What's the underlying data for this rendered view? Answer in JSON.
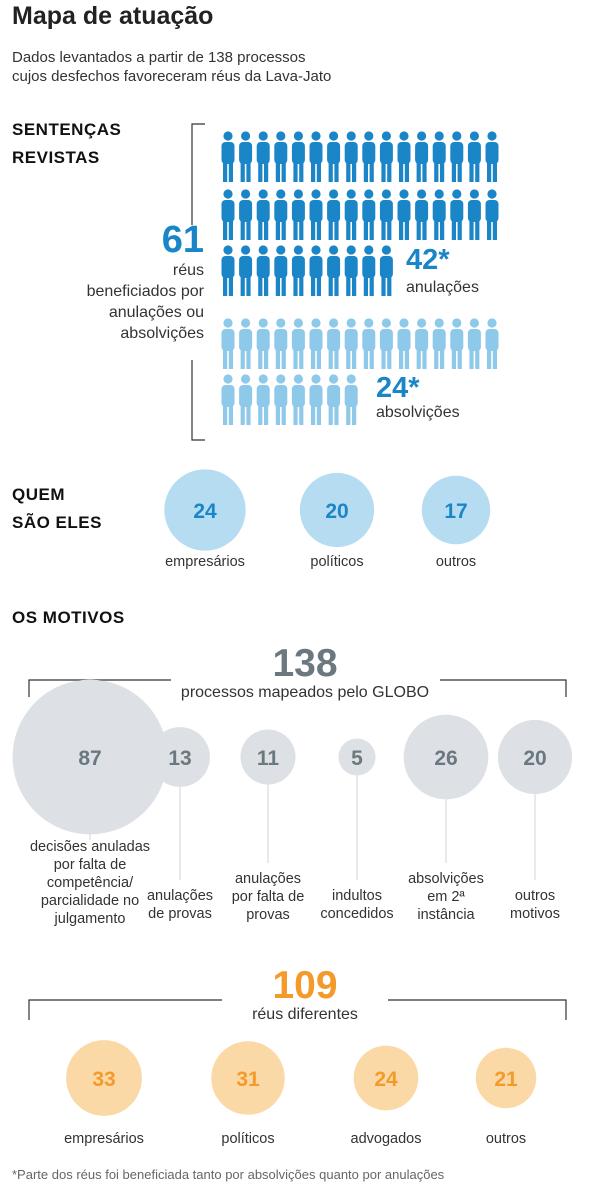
{
  "header": {
    "title": "Mapa de atuação",
    "subtitle_line1": "Dados levantados a partir de 138 processos",
    "subtitle_line2": "cujos desfechos favoreceram réus da Lava-Jato"
  },
  "sentencas": {
    "heading_line1": "SENTENÇAS",
    "heading_line2": "REVISTAS",
    "total": "61",
    "total_text_line1": "réus",
    "total_text_line2": "beneficiados por",
    "total_text_line3": "anulações ou",
    "total_text_line4": "absolvições",
    "anulacoes_value": "42*",
    "anulacoes_label": "anulações",
    "absolvicoes_value": "24*",
    "absolvicoes_label": "absolvições"
  },
  "quem": {
    "heading_line1": "QUEM",
    "heading_line2": "SÃO ELES"
  },
  "motivos": {
    "heading": "OS MOTIVOS",
    "total": "138",
    "total_label": "processos mapeados pelo GLOBO"
  },
  "reus": {
    "total": "109",
    "total_label": "réus diferentes"
  },
  "footnote": "*Parte dos réus foi beneficiada tanto por absolvições quanto por anulações",
  "colors": {
    "dark_blue": "#1a86c7",
    "light_blue": "#8ec9ea",
    "pale_blue": "#b5dcf1",
    "gray_circle": "#dde1e5",
    "orange_text": "#f39a2a",
    "orange_circle": "#fbd9a6",
    "gray_text": "#6b7880"
  },
  "chart_data": [
    {
      "type": "pictogram",
      "title": "SENTENÇAS REVISTAS",
      "total": 61,
      "series": [
        {
          "name": "anulações",
          "values": [
            42
          ]
        },
        {
          "name": "absolvições",
          "values": [
            24
          ]
        }
      ]
    },
    {
      "type": "bubble",
      "title": "QUEM SÃO ELES",
      "categories": [
        "empresários",
        "políticos",
        "outros"
      ],
      "values": [
        24,
        20,
        17
      ]
    },
    {
      "type": "bubble",
      "title": "OS MOTIVOS",
      "total": 138,
      "total_label": "processos mapeados pelo GLOBO",
      "categories": [
        "decisões anuladas por falta de competência/ parcialidade no julgamento",
        "anulações de provas",
        "anulações por falta de provas",
        "indultos concedidos",
        "absolvições em 2ª instância",
        "outros motivos"
      ],
      "labels": [
        [
          "decisões anuladas",
          "por falta de",
          "competência/",
          "parcialidade no",
          "julgamento"
        ],
        [
          "anulações",
          "de provas"
        ],
        [
          "anulações",
          "por falta de",
          "provas"
        ],
        [
          "indultos",
          "concedidos"
        ],
        [
          "absolvições",
          "em 2ª",
          "instância"
        ],
        [
          "outros",
          "motivos"
        ]
      ],
      "values": [
        87,
        13,
        11,
        5,
        26,
        20
      ]
    },
    {
      "type": "bubble",
      "total": 109,
      "total_label": "réus diferentes",
      "categories": [
        "empresários",
        "políticos",
        "advogados",
        "outros"
      ],
      "values": [
        33,
        31,
        24,
        21
      ]
    }
  ]
}
